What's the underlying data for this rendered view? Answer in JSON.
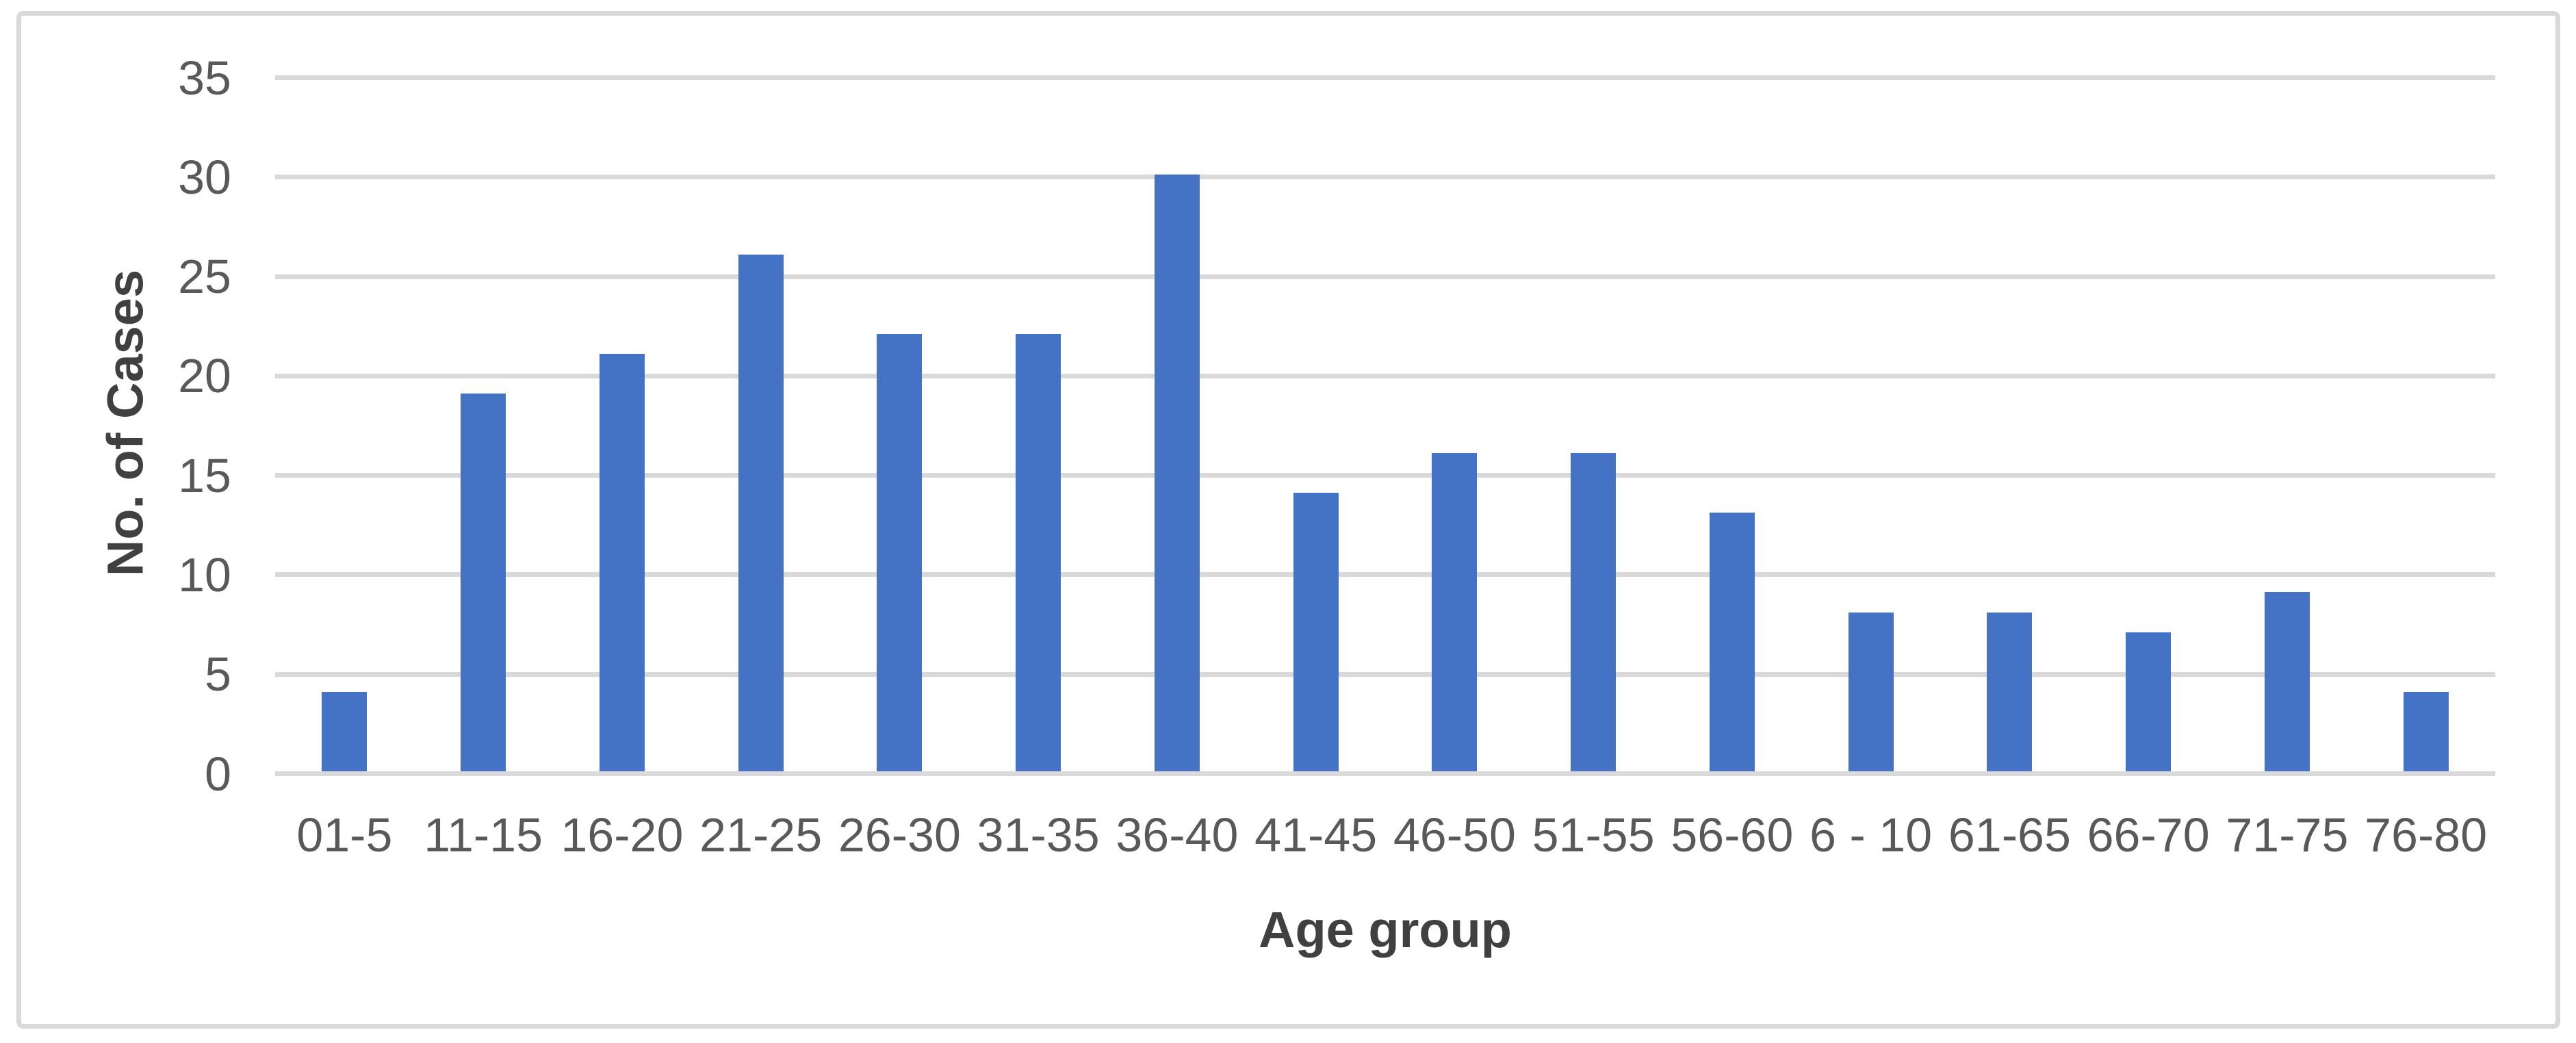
{
  "chart_data": {
    "type": "bar",
    "title": "",
    "categories": [
      "01-5",
      "11-15",
      "16-20",
      "21-25",
      "26-30",
      "31-35",
      "36-40",
      "41-45",
      "46-50",
      "51-55",
      "56-60",
      "6 - 10",
      "61-65",
      "66-70",
      "71-75",
      "76-80"
    ],
    "values": [
      4,
      19,
      21,
      26,
      22,
      22,
      30,
      14,
      16,
      16,
      13,
      8,
      8,
      7,
      9,
      4
    ],
    "xlabel": "Age group",
    "ylabel": "No. of Cases",
    "ylim": [
      0,
      35
    ],
    "yticks": [
      0,
      5,
      10,
      15,
      20,
      25,
      30,
      35
    ],
    "grid": true,
    "legend": false,
    "colors": {
      "bar": "#4472C4",
      "gridline": "#d9d9d9",
      "tick_label": "#595959",
      "axis_title": "#404040",
      "frame_border": "#d9d9d9",
      "background": "#ffffff"
    }
  }
}
